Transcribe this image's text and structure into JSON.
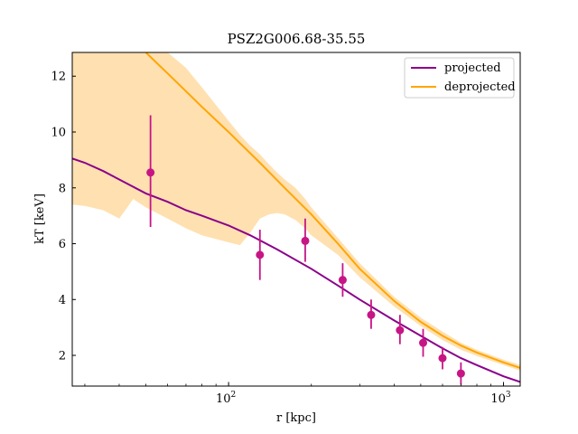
{
  "chart_data": {
    "type": "line",
    "title": "PSZ2G006.68-35.55",
    "xlabel": "r [kpc]",
    "ylabel": "kT [keV]",
    "x_scale": "log",
    "xlim": [
      27,
      1150
    ],
    "ylim": [
      0.9,
      12.85
    ],
    "x_ticks": [
      {
        "value": 100,
        "label_base": "10",
        "label_exp": "2"
      },
      {
        "value": 1000,
        "label_base": "10",
        "label_exp": "3"
      }
    ],
    "y_ticks": [
      2,
      4,
      6,
      8,
      10,
      12
    ],
    "grid": false,
    "legend_position": "top-right",
    "colors": {
      "projected": "#8b008b",
      "deprojected": "#ffa500",
      "band": "#ffe0b0",
      "points": "#c71585"
    },
    "series": [
      {
        "name": "projected",
        "type": "line",
        "x": [
          27,
          30,
          35,
          40,
          50,
          60,
          70,
          80,
          100,
          120,
          150,
          200,
          250,
          300,
          400,
          500,
          600,
          700,
          800,
          1000,
          1150
        ],
        "y": [
          9.05,
          8.9,
          8.6,
          8.3,
          7.8,
          7.5,
          7.2,
          7.0,
          6.65,
          6.3,
          5.8,
          5.1,
          4.5,
          4.0,
          3.25,
          2.7,
          2.25,
          1.9,
          1.65,
          1.25,
          1.05
        ]
      },
      {
        "name": "deprojected",
        "type": "line",
        "x": [
          50,
          60,
          80,
          100,
          130,
          160,
          200,
          250,
          300,
          400,
          500,
          600,
          700,
          800,
          1000,
          1150
        ],
        "y": [
          12.85,
          12.1,
          10.9,
          10.0,
          8.9,
          8.0,
          7.05,
          6.0,
          5.1,
          3.95,
          3.2,
          2.7,
          2.35,
          2.1,
          1.75,
          1.55
        ]
      },
      {
        "name": "deprojected band",
        "type": "area",
        "x": [
          27,
          30,
          35,
          40,
          45,
          50,
          60,
          70,
          80,
          100,
          110,
          120,
          130,
          140,
          150,
          160,
          175,
          190,
          200,
          250,
          300,
          400,
          500,
          600,
          700,
          800,
          1000,
          1150
        ],
        "upper": [
          12.85,
          12.85,
          12.85,
          12.85,
          12.85,
          12.85,
          12.85,
          12.3,
          11.6,
          10.4,
          9.9,
          9.5,
          9.2,
          8.85,
          8.55,
          8.3,
          8.0,
          7.6,
          7.3,
          6.2,
          5.3,
          4.1,
          3.35,
          2.85,
          2.45,
          2.2,
          1.85,
          1.65
        ],
        "lower": [
          7.4,
          7.35,
          7.2,
          6.9,
          7.6,
          7.3,
          6.9,
          6.55,
          6.3,
          6.05,
          5.95,
          6.4,
          6.9,
          7.05,
          7.1,
          7.05,
          6.85,
          6.55,
          6.3,
          5.6,
          4.8,
          3.75,
          3.05,
          2.55,
          2.2,
          1.98,
          1.65,
          1.45
        ]
      },
      {
        "name": "data points",
        "type": "scatter",
        "points": [
          {
            "x": 52,
            "y": 8.55,
            "ylow": 6.6,
            "yhigh": 10.6
          },
          {
            "x": 130,
            "y": 5.6,
            "ylow": 4.7,
            "yhigh": 6.5
          },
          {
            "x": 190,
            "y": 6.1,
            "ylow": 5.35,
            "yhigh": 6.9
          },
          {
            "x": 260,
            "y": 4.7,
            "ylow": 4.1,
            "yhigh": 5.3
          },
          {
            "x": 330,
            "y": 3.45,
            "ylow": 2.95,
            "yhigh": 4.0
          },
          {
            "x": 420,
            "y": 2.9,
            "ylow": 2.4,
            "yhigh": 3.45
          },
          {
            "x": 510,
            "y": 2.45,
            "ylow": 1.95,
            "yhigh": 2.95
          },
          {
            "x": 600,
            "y": 1.9,
            "ylow": 1.5,
            "yhigh": 2.3
          },
          {
            "x": 700,
            "y": 1.35,
            "ylow": 0.95,
            "yhigh": 1.75
          }
        ]
      }
    ]
  }
}
